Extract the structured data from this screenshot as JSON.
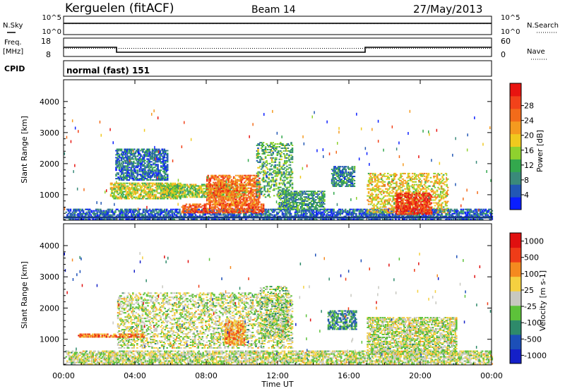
{
  "header": {
    "site": "Kerguelen (fitACF)",
    "beam": "Beam 14",
    "date": "27/May/2013"
  },
  "top_panels": {
    "nsky_label": "N.Sky",
    "nsearch_label": "N.Search",
    "freq_label_line1": "Freq.",
    "freq_label_line2": "[MHz]",
    "nave_label": "Nave",
    "cpid_label": "CPID",
    "cpid_value": "normal (fast) 151",
    "noise_ticks": [
      "10^5",
      "10^0"
    ],
    "freq_ticks": [
      "18",
      "8"
    ],
    "nave_ticks": [
      "60",
      "0"
    ]
  },
  "chart_data": [
    {
      "type": "heatmap",
      "name": "power",
      "ylabel": "Slant Range [km]",
      "yticks": [
        "1000",
        "2000",
        "3000",
        "4000"
      ],
      "ylim": [
        180,
        4700
      ],
      "colorbar_label": "Power [dB]",
      "colorbar_ticks": [
        "4",
        "8",
        "12",
        "16",
        "20",
        "24",
        "28"
      ],
      "colors": [
        "#0a1eff",
        "#2257b5",
        "#3a8a7a",
        "#33a84d",
        "#8fd12e",
        "#f0c91e",
        "#f59a1f",
        "#f36b1a",
        "#f2421a",
        "#e81410"
      ],
      "regions": [
        {
          "t0": 0.1,
          "t1": 24.0,
          "r0": 190,
          "r1": 520,
          "level": 0.15
        },
        {
          "t0": 2.9,
          "t1": 5.8,
          "r0": 1450,
          "r1": 2450,
          "level": 0.2
        },
        {
          "t0": 2.6,
          "t1": 6.5,
          "r0": 850,
          "r1": 1350,
          "level": 0.5
        },
        {
          "t0": 5.5,
          "t1": 10.2,
          "r0": 900,
          "r1": 1350,
          "level": 0.45
        },
        {
          "t0": 6.6,
          "t1": 11.2,
          "r0": 400,
          "r1": 700,
          "level": 0.8
        },
        {
          "t0": 8.0,
          "t1": 11.0,
          "r0": 650,
          "r1": 1600,
          "level": 0.75
        },
        {
          "t0": 10.8,
          "t1": 12.8,
          "r0": 900,
          "r1": 2700,
          "level": 0.35
        },
        {
          "t0": 12.0,
          "t1": 14.6,
          "r0": 500,
          "r1": 1100,
          "level": 0.3
        },
        {
          "t0": 15.0,
          "t1": 16.3,
          "r0": 1250,
          "r1": 1900,
          "level": 0.25
        },
        {
          "t0": 17.0,
          "t1": 21.5,
          "r0": 400,
          "r1": 1700,
          "level": 0.55
        },
        {
          "t0": 18.6,
          "t1": 20.6,
          "r0": 350,
          "r1": 1050,
          "level": 0.9
        }
      ]
    },
    {
      "type": "heatmap",
      "name": "velocity",
      "ylabel": "Slant Range [km]",
      "yticks": [
        "1000",
        "2000",
        "3000",
        "4000"
      ],
      "ylim": [
        180,
        4700
      ],
      "colorbar_label": "Velocity [m s-1]",
      "colorbar_ticks": [
        "1000",
        "500",
        "100",
        "25",
        "-25",
        "-100",
        "-500",
        "-1000"
      ],
      "colors": [
        "#1420c8",
        "#1c4fb8",
        "#2e8a6a",
        "#5dc23a",
        "#c8c8c0",
        "#f5d040",
        "#f58a1f",
        "#ef3c18",
        "#e01010"
      ],
      "regions": [
        {
          "t0": 0.1,
          "t1": 24.0,
          "r0": 190,
          "r1": 620,
          "level": 0.5
        },
        {
          "t0": 3.0,
          "t1": 12.8,
          "r0": 700,
          "r1": 2500,
          "level": 0.5
        },
        {
          "t0": 9.0,
          "t1": 10.2,
          "r0": 800,
          "r1": 1600,
          "level": 0.7
        },
        {
          "t0": 11.0,
          "t1": 12.6,
          "r0": 1000,
          "r1": 2700,
          "level": 0.45
        },
        {
          "t0": 14.8,
          "t1": 16.4,
          "r0": 1300,
          "r1": 1900,
          "level": 0.3
        },
        {
          "t0": 17.0,
          "t1": 22.0,
          "r0": 500,
          "r1": 1700,
          "level": 0.5
        },
        {
          "t0": 0.8,
          "t1": 4.5,
          "r0": 1050,
          "r1": 1150,
          "level": 0.75
        }
      ]
    }
  ],
  "xaxis": {
    "label": "Time UT",
    "ticks": [
      "00:00",
      "04:00",
      "08:00",
      "12:00",
      "16:00",
      "20:00",
      "00:00"
    ],
    "xlim": [
      0,
      24
    ]
  }
}
